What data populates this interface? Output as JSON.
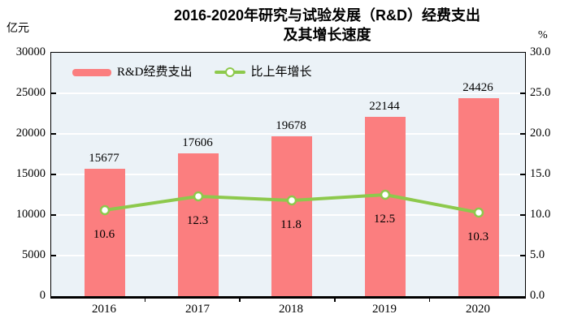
{
  "title": {
    "line1": "2016-2020年研究与试验发展（R&D）经费支出",
    "line2": "及其增长速度"
  },
  "left_axis_unit": "亿元",
  "right_axis_unit": "%",
  "legend": [
    {
      "label": "R&D经费支出",
      "type": "bar"
    },
    {
      "label": "比上年增长",
      "type": "line"
    }
  ],
  "colors": {
    "bar": "#FB7E7F",
    "line": "#8DC94C",
    "marker_fill": "#FFFFFF",
    "plot_bg": "#EBF2F7",
    "grid": "#FFFFFF",
    "axis": "#000000",
    "text": "#000000"
  },
  "chart_data": {
    "type": "bar",
    "title": "2016-2020年研究与试验发展（R&D）经费支出及其增长速度",
    "categories": [
      "2016",
      "2017",
      "2018",
      "2019",
      "2020"
    ],
    "series": [
      {
        "name": "R&D经费支出",
        "type": "bar",
        "axis": "left",
        "values": [
          15677,
          17606,
          19678,
          22144,
          24426
        ]
      },
      {
        "name": "比上年增长",
        "type": "line",
        "axis": "right",
        "values": [
          10.6,
          12.3,
          11.8,
          12.5,
          10.3
        ]
      }
    ],
    "left_ylabel": "亿元",
    "right_ylabel": "%",
    "left_ylim": [
      0,
      30000
    ],
    "right_ylim": [
      0,
      30
    ],
    "left_tick_labels": [
      "0",
      "5000",
      "10000",
      "15000",
      "20000",
      "25000",
      "30000"
    ],
    "right_tick_labels": [
      "0.0",
      "5.0",
      "10.0",
      "15.0",
      "20.0",
      "25.0",
      "30.0"
    ],
    "grid": true,
    "legend_position": "top-inside"
  }
}
